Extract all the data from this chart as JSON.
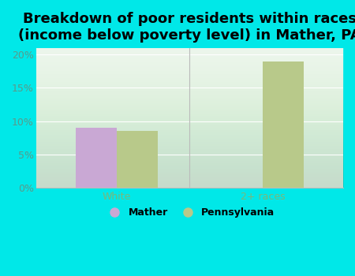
{
  "title": "Breakdown of poor residents within races\n(income below poverty level) in Mather, PA",
  "categories": [
    "White",
    "2+ races"
  ],
  "mather_values": [
    9.0,
    null
  ],
  "pennsylvania_values": [
    8.5,
    19.0
  ],
  "mather_color": "#c9a8d4",
  "pennsylvania_color": "#b8c98a",
  "background_color": "#00e8e8",
  "plot_bg_top": "#f0f8f0",
  "plot_bg_bottom": "#e0f2e0",
  "ylim": [
    0,
    21
  ],
  "yticks": [
    0,
    5,
    10,
    15,
    20
  ],
  "yticklabels": [
    "0%",
    "5%",
    "10%",
    "15%",
    "20%"
  ],
  "bar_width": 0.28,
  "legend_labels": [
    "Mather",
    "Pennsylvania"
  ],
  "title_fontsize": 13,
  "tick_fontsize": 9,
  "tick_color": "#5a9a8a",
  "xlabel_color": "#7ab87a",
  "separator_color": "#bbbbbb"
}
